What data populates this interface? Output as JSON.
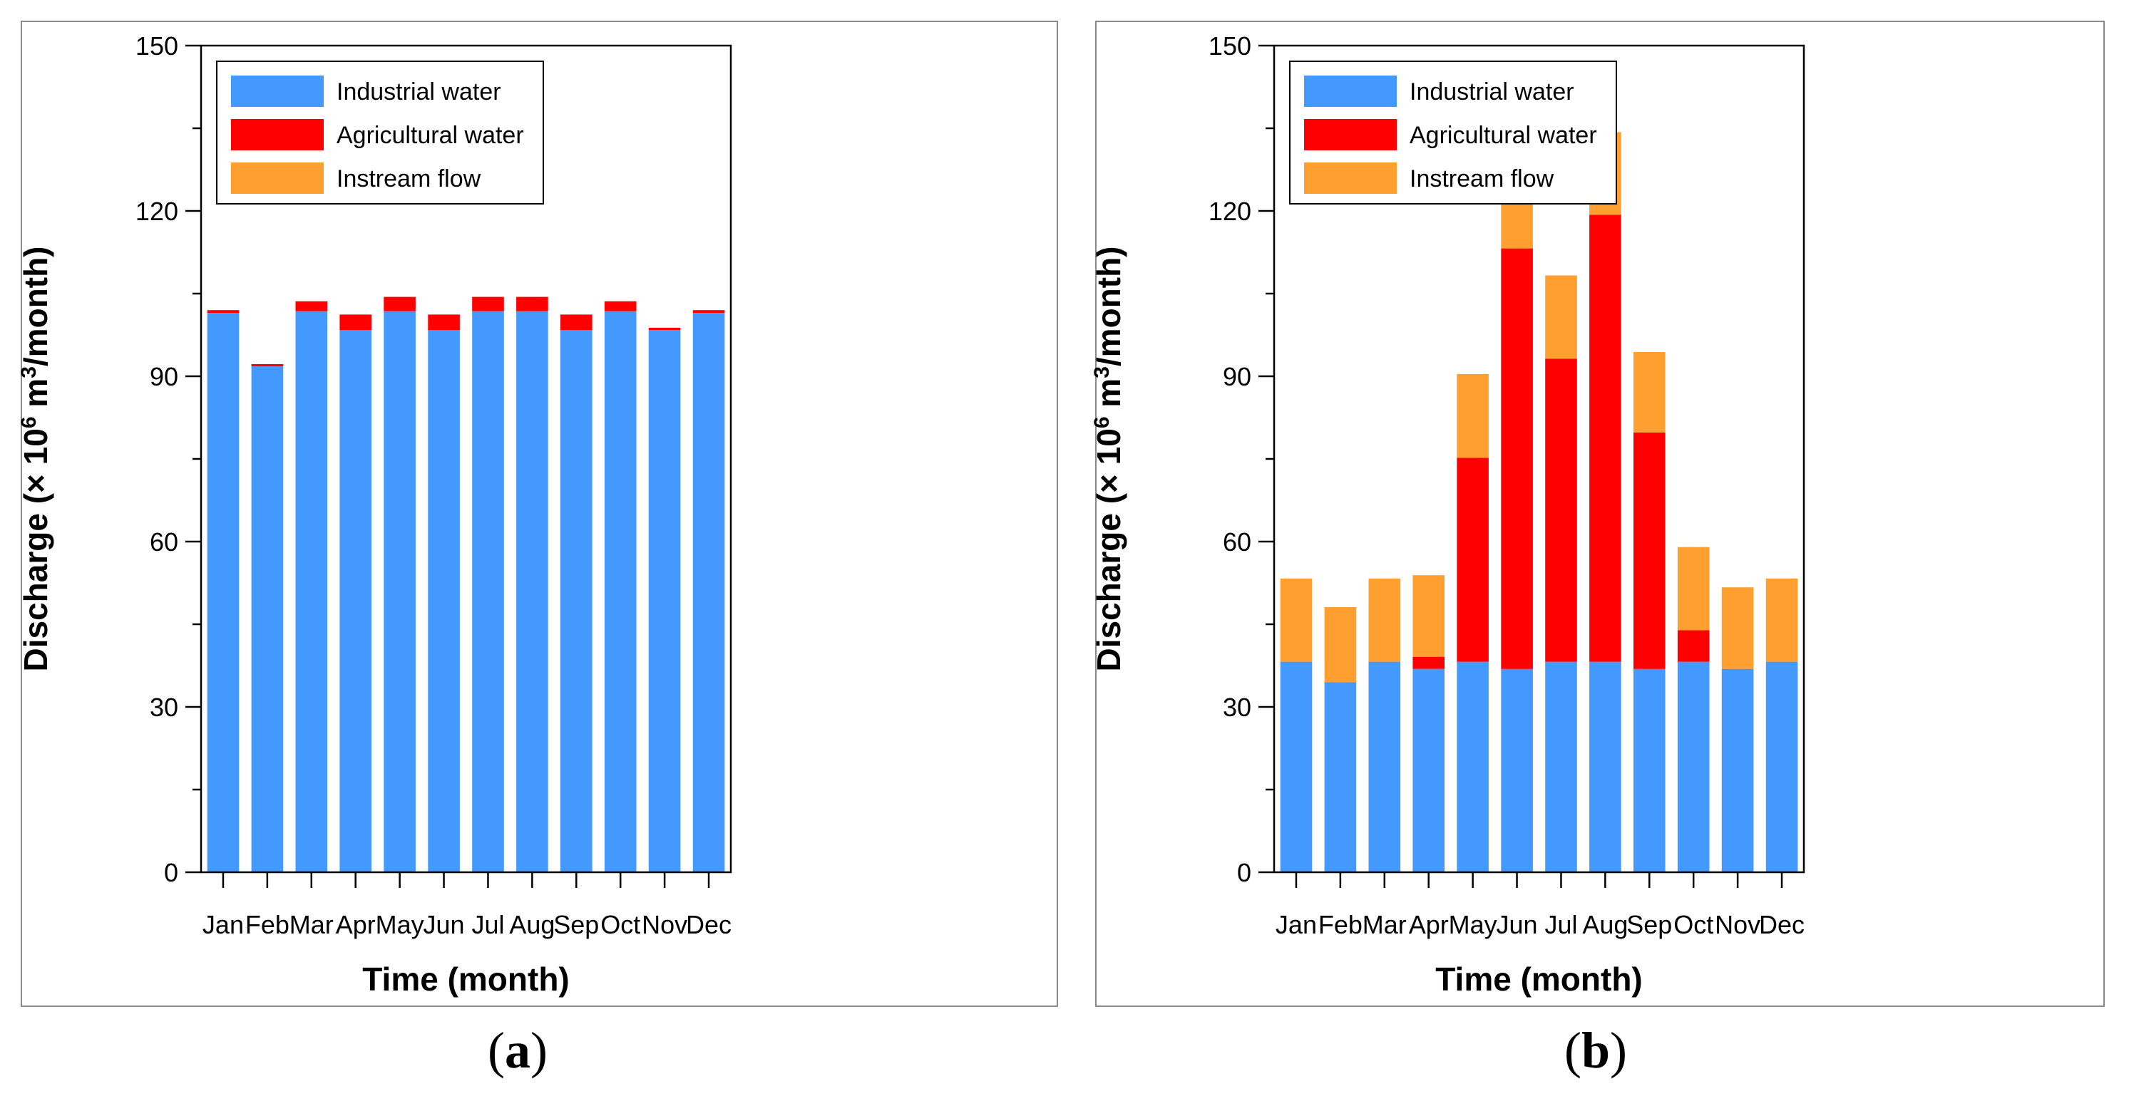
{
  "chart_data": [
    {
      "type": "bar",
      "stacked": true,
      "panel_label": {
        "open": "(",
        "letter": "a",
        "close": ")"
      },
      "categories": [
        "Jan",
        "Feb",
        "Mar",
        "Apr",
        "May",
        "Jun",
        "Jul",
        "Aug",
        "Sep",
        "Oct",
        "Nov",
        "Dec"
      ],
      "series": [
        {
          "name": "Industrial water",
          "color": "#4499ff",
          "values": [
            101.5,
            91.8,
            101.8,
            98.4,
            101.8,
            98.4,
            101.8,
            101.8,
            98.4,
            101.8,
            98.4,
            101.5
          ]
        },
        {
          "name": "Agricultural water",
          "color": "#ff0000",
          "values": [
            0.5,
            0.4,
            1.8,
            2.8,
            2.6,
            2.8,
            2.6,
            2.6,
            2.8,
            1.8,
            0.4,
            0.5
          ]
        },
        {
          "name": "Instream flow",
          "color": "#ff9f30",
          "values": [
            0,
            0,
            0,
            0,
            0,
            0,
            0,
            0,
            0,
            0,
            0,
            0
          ]
        }
      ],
      "xlabel": "Time (month)",
      "ylabel": {
        "prefix": "Discharge (× 10",
        "sup1": "6",
        "mid": " m",
        "sup2": "3",
        "suffix": "/month)"
      },
      "ylim": [
        0,
        150
      ],
      "yticks": [
        "0",
        "30",
        "60",
        "90",
        "120",
        "150"
      ],
      "legend_position": "top-left"
    },
    {
      "type": "bar",
      "stacked": true,
      "panel_label": {
        "open": "(",
        "letter": "b",
        "close": ")"
      },
      "categories": [
        "Jan",
        "Feb",
        "Mar",
        "Apr",
        "May",
        "Jun",
        "Jul",
        "Aug",
        "Sep",
        "Oct",
        "Nov",
        "Dec"
      ],
      "series": [
        {
          "name": "Industrial water",
          "color": "#4499ff",
          "values": [
            38.2,
            34.5,
            38.2,
            36.9,
            38.2,
            36.9,
            38.2,
            38.2,
            36.9,
            38.2,
            36.9,
            38.2
          ]
        },
        {
          "name": "Agricultural water",
          "color": "#ff0000",
          "values": [
            0,
            0,
            0,
            2.2,
            37.0,
            76.3,
            55.0,
            81.1,
            42.9,
            5.7,
            0,
            0
          ]
        },
        {
          "name": "Instream flow",
          "color": "#ff9f30",
          "values": [
            15.1,
            13.6,
            15.1,
            14.8,
            15.2,
            14.5,
            15.1,
            15.0,
            14.6,
            15.1,
            14.8,
            15.1
          ]
        }
      ],
      "xlabel": "Time (month)",
      "ylabel": {
        "prefix": "Discharge (× 10",
        "sup1": "6",
        "mid": " m",
        "sup2": "3",
        "suffix": "/month)"
      },
      "ylim": [
        0,
        150
      ],
      "yticks": [
        "0",
        "30",
        "60",
        "90",
        "120",
        "150"
      ],
      "legend_position": "top-left"
    }
  ]
}
